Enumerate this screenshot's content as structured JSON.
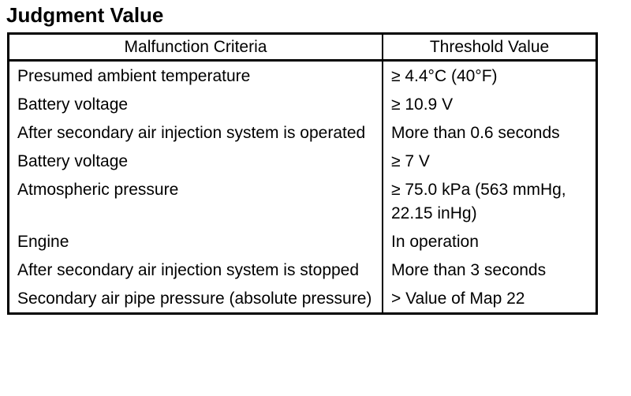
{
  "title": "Judgment Value",
  "table": {
    "headers": {
      "criteria": "Malfunction Criteria",
      "threshold": "Threshold Value"
    },
    "rows": [
      {
        "criteria": "Presumed ambient temperature",
        "threshold": "≥ 4.4°C (40°F)"
      },
      {
        "criteria": "Battery voltage",
        "threshold": "≥ 10.9 V"
      },
      {
        "criteria": "After secondary air injection system is operated",
        "threshold": "More than 0.6 seconds"
      },
      {
        "criteria": "Battery voltage",
        "threshold": "≥ 7 V"
      },
      {
        "criteria": "Atmospheric pressure",
        "threshold": "≥ 75.0 kPa (563 mmHg, 22.15 inHg)"
      },
      {
        "criteria": "Engine",
        "threshold": "In operation"
      },
      {
        "criteria": "After secondary air injection system is stopped",
        "threshold": "More than 3 seconds"
      },
      {
        "criteria": "Secondary air pipe pressure (absolute pressure)",
        "threshold": "> Value of Map 22"
      }
    ]
  }
}
